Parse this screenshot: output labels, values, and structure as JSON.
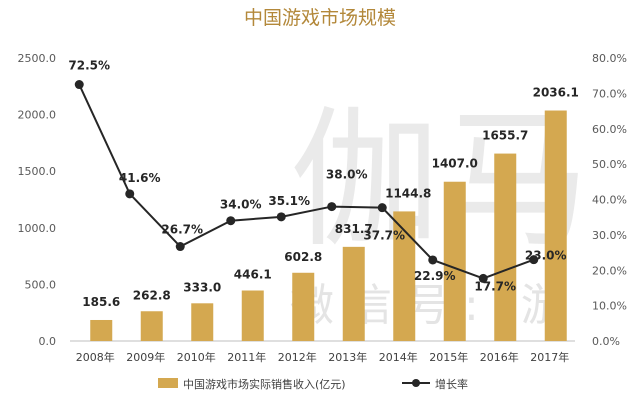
{
  "watermark": {
    "big": "伽马",
    "small": "微信号: 游"
  },
  "chart_data": {
    "type": "bar+line",
    "title": "中国游戏市场规模",
    "categories": [
      "2008年",
      "2009年",
      "2010年",
      "2011年",
      "2012年",
      "2013年",
      "2014年",
      "2015年",
      "2016年",
      "2017年"
    ],
    "series": [
      {
        "name": "中国游戏市场实际销售收入(亿元)",
        "type": "bar",
        "axis": "left",
        "values": [
          185.6,
          262.8,
          333.0,
          446.1,
          602.8,
          831.7,
          1144.8,
          1407.0,
          1655.7,
          2036.1
        ],
        "labels": [
          "185.6",
          "262.8",
          "333.0",
          "446.1",
          "602.8",
          "831.7",
          "1144.8",
          "1407.0",
          "1655.7",
          "2036.1"
        ],
        "color": "#d4a850"
      },
      {
        "name": "增长率",
        "type": "line",
        "axis": "right",
        "values": [
          72.5,
          41.6,
          26.7,
          34.0,
          35.1,
          38.0,
          37.7,
          22.9,
          17.7,
          23.0
        ],
        "labels": [
          "72.5%",
          "41.6%",
          "26.7%",
          "34.0%",
          "35.1%",
          "38.0%",
          "37.7%",
          "22.9%",
          "17.7%",
          "23.0%"
        ],
        "color": "#262626"
      }
    ],
    "y_left": {
      "min": 0,
      "max": 2500,
      "ticks": [
        "0.0",
        "500.0",
        "1000.0",
        "1500.0",
        "2000.0",
        "2500.0"
      ]
    },
    "y_right": {
      "min": 0,
      "max": 80,
      "ticks": [
        "0.0%",
        "10.0%",
        "20.0%",
        "30.0%",
        "40.0%",
        "50.0%",
        "60.0%",
        "70.0%",
        "80.0%"
      ]
    },
    "grid": false,
    "legend": {
      "position": "bottom",
      "items": [
        "中国游戏市场实际销售收入(亿元)",
        "增长率"
      ]
    }
  }
}
